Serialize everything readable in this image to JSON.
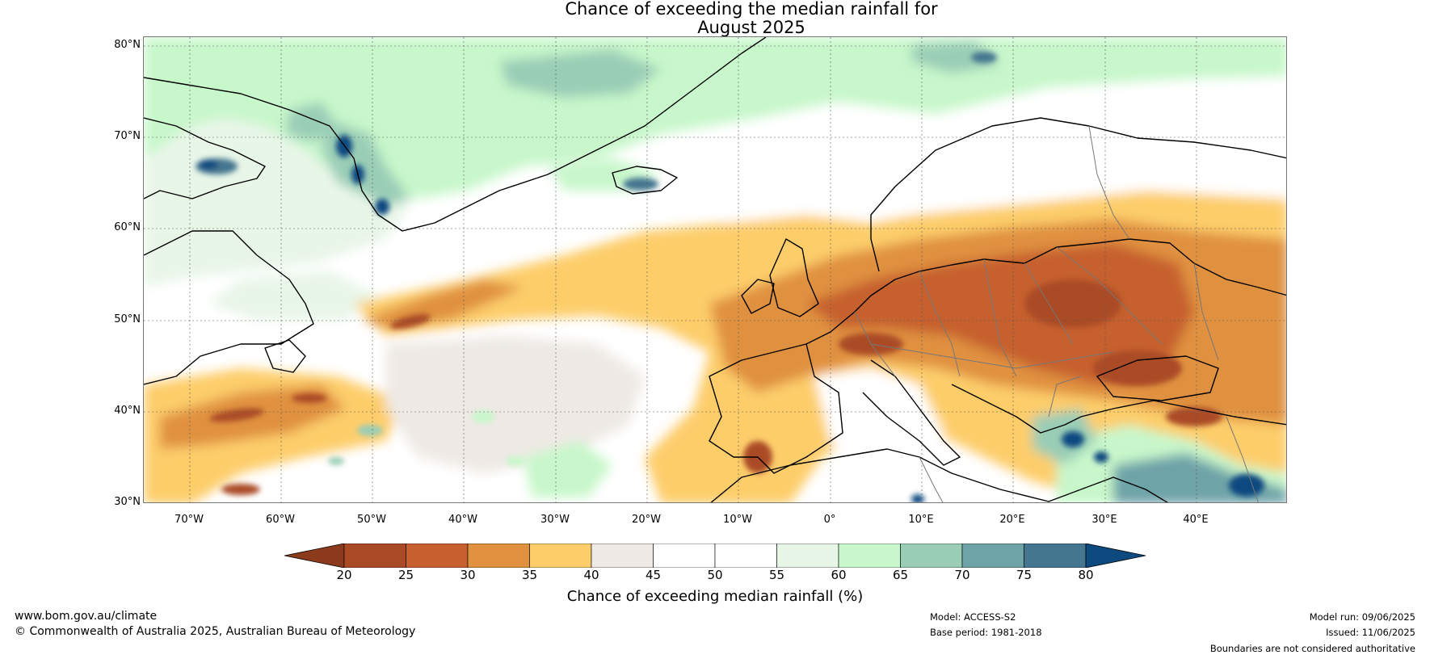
{
  "title": {
    "line1": "Chance of exceeding the median rainfall for",
    "line2": "August 2025"
  },
  "map": {
    "lat_labels": [
      "80°N",
      "70°N",
      "60°N",
      "50°N",
      "40°N",
      "30°N"
    ],
    "lon_labels": [
      "70°W",
      "60°W",
      "50°W",
      "40°W",
      "30°W",
      "20°W",
      "10°W",
      "0°",
      "10°E",
      "20°E",
      "30°E",
      "40°E"
    ],
    "lat_range": [
      30,
      81
    ],
    "lon_range": [
      -75,
      50
    ],
    "palette": {
      "20-25": "#aa4b26",
      "25-30": "#c6602f",
      "30-35": "#e0913f",
      "35-40": "#fdcd6a",
      "40-45": "#eee9e4",
      "45-55": "#ffffff",
      "55-60": "#e8f6e8",
      "60-65": "#c8f7cb",
      "65-70": "#9acdb6",
      "70-75": "#6ea3a8",
      "75-80": "#45768f",
      "over-80": "#0d4a80",
      "under-20": "#8c3a1c"
    }
  },
  "colorbar": {
    "ticks": [
      "20",
      "25",
      "30",
      "35",
      "40",
      "45",
      "50",
      "55",
      "60",
      "65",
      "70",
      "75",
      "80"
    ],
    "colors": [
      "#aa4b26",
      "#c6602f",
      "#e0913f",
      "#fdcd6a",
      "#eee9e4",
      "#ffffff",
      "#ffffff",
      "#e8f6e8",
      "#c8f7cb",
      "#9acdb6",
      "#6ea3a8",
      "#45768f"
    ],
    "under_color": "#8c3a1c",
    "over_color": "#0d4a80",
    "label": "Chance of exceeding median rainfall (%)"
  },
  "footer": {
    "website": "www.bom.gov.au/climate",
    "copyright": "© Commonwealth of Australia 2025, Australian Bureau of Meteorology",
    "model": "Model: ACCESS-S2",
    "base_period": "Base period: 1981-2018",
    "model_run": "Model run: 09/06/2025",
    "issued": "Issued: 11/06/2025",
    "disclaimer": "Boundaries are not considered authoritative"
  }
}
